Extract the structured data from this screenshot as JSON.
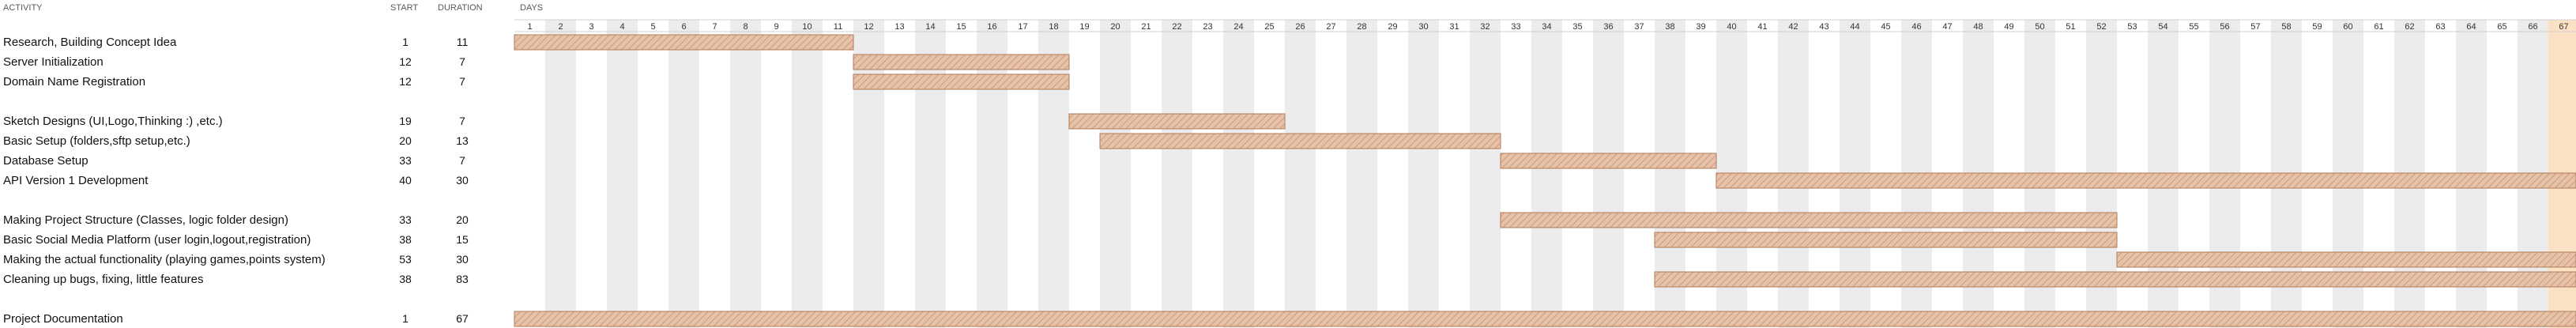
{
  "headers": {
    "activity": "ACTIVITY",
    "start": "START",
    "duration": "DURATION",
    "days": "DAYS"
  },
  "chart_data": {
    "type": "gantt",
    "x_days": [
      1,
      67
    ],
    "highlight_day": 67,
    "colors": {
      "bar_fill": "#e7c2a9",
      "bar_hatch": "#c99a7d",
      "bar_border": "#b07a58",
      "shade_column": "#ececec",
      "highlight_column": "#fbe1c4",
      "grid": "#d0d0d0"
    },
    "rows": [
      {
        "activity": "Research, Building Concept Idea",
        "start": 1,
        "duration": 11
      },
      {
        "activity": "Server Initialization",
        "start": 12,
        "duration": 7
      },
      {
        "activity": "Domain Name Registration",
        "start": 12,
        "duration": 7
      },
      null,
      {
        "activity": "Sketch Designs (UI,Logo,Thinking :) ,etc.)",
        "start": 19,
        "duration": 7
      },
      {
        "activity": "Basic Setup (folders,sftp setup,etc.)",
        "start": 20,
        "duration": 13
      },
      {
        "activity": "Database Setup",
        "start": 33,
        "duration": 7
      },
      {
        "activity": "API Version 1 Development",
        "start": 40,
        "duration": 30
      },
      null,
      {
        "activity": "Making Project Structure (Classes, logic folder design)",
        "start": 33,
        "duration": 20
      },
      {
        "activity": "Basic Social Media Platform (user login,logout,registration)",
        "start": 38,
        "duration": 15
      },
      {
        "activity": "Making the actual functionality (playing games,points system)",
        "start": 53,
        "duration": 30
      },
      {
        "activity": "Cleaning up bugs, fixing, little features",
        "start": 38,
        "duration": 83
      },
      null,
      {
        "activity": "Project Documentation",
        "start": 1,
        "duration": 67
      }
    ]
  }
}
